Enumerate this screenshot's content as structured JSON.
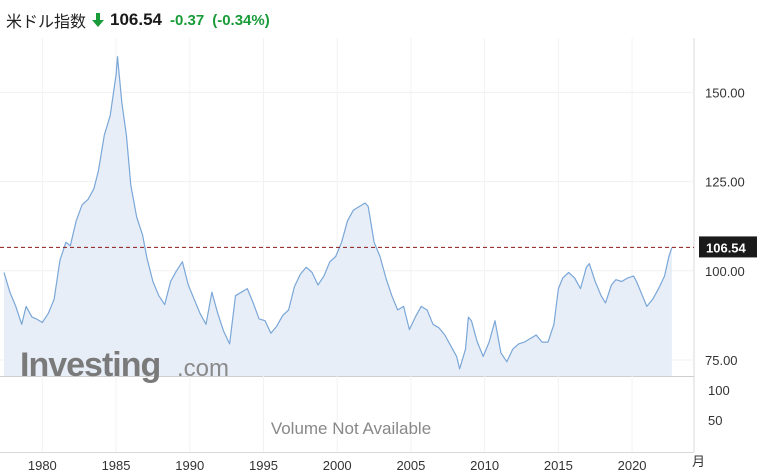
{
  "header": {
    "title": "米ドル指数",
    "price": "106.54",
    "change": "-0.37",
    "change_pct": "(-0.34%)",
    "direction_icon": "down-arrow-icon",
    "up_color": "#1a9b3a",
    "accent_color": "#1a9b3a"
  },
  "logo": {
    "brand": "Investing",
    "suffix": ".com"
  },
  "volume_note": "Volume Not Available",
  "colors": {
    "line": "#7aa7d8",
    "fill": "#e8eef7",
    "last_line": "#8b1a1a",
    "label_bg": "#1a1a1a"
  },
  "chart_data": {
    "type": "area",
    "last_value": 106.54,
    "last_value_label": "106.54",
    "x_unit_label": "月",
    "xlim": [
      1977.4,
      2024.2
    ],
    "ylim": [
      70.5,
      163
    ],
    "yticks": [
      75,
      100,
      125,
      150
    ],
    "ytick_labels": [
      "75.00",
      "100.00",
      "125.00",
      "150.00"
    ],
    "xticks": [
      1980,
      1985,
      1990,
      1995,
      2000,
      2005,
      2010,
      2015,
      2020
    ],
    "xtick_labels": [
      "1980",
      "1985",
      "1990",
      "1995",
      "2000",
      "2005",
      "2010",
      "2015",
      "2020"
    ],
    "volume_yticks": [
      50,
      100
    ],
    "volume_ytick_labels": [
      "50",
      "100"
    ],
    "grid": true,
    "x": [
      1977.4,
      1977.8,
      1978.2,
      1978.6,
      1978.9,
      1979.3,
      1979.6,
      1980.0,
      1980.4,
      1980.8,
      1981.2,
      1981.6,
      1981.9,
      1982.3,
      1982.7,
      1983.1,
      1983.5,
      1983.8,
      1984.2,
      1984.6,
      1985.0,
      1985.1,
      1985.4,
      1985.7,
      1986.0,
      1986.4,
      1986.8,
      1987.1,
      1987.5,
      1987.9,
      1988.3,
      1988.7,
      1989.1,
      1989.5,
      1989.9,
      1990.3,
      1990.7,
      1991.1,
      1991.5,
      1991.9,
      1992.3,
      1992.7,
      1993.1,
      1993.5,
      1993.9,
      1994.3,
      1994.7,
      1995.1,
      1995.5,
      1995.9,
      1996.3,
      1996.7,
      1997.1,
      1997.5,
      1997.9,
      1998.3,
      1998.7,
      1999.1,
      1999.5,
      1999.9,
      2000.3,
      2000.7,
      2001.1,
      2001.5,
      2001.9,
      2002.1,
      2002.5,
      2002.9,
      2003.3,
      2003.7,
      2004.1,
      2004.5,
      2004.9,
      2005.3,
      2005.7,
      2006.1,
      2006.5,
      2006.9,
      2007.3,
      2007.7,
      2008.1,
      2008.3,
      2008.7,
      2008.9,
      2009.1,
      2009.5,
      2009.9,
      2010.3,
      2010.7,
      2011.1,
      2011.5,
      2011.9,
      2012.3,
      2012.7,
      2013.1,
      2013.5,
      2013.9,
      2014.3,
      2014.7,
      2015.0,
      2015.3,
      2015.7,
      2016.1,
      2016.5,
      2016.9,
      2017.1,
      2017.5,
      2017.9,
      2018.2,
      2018.6,
      2018.9,
      2019.3,
      2019.7,
      2020.1,
      2020.3,
      2020.7,
      2021.0,
      2021.4,
      2021.8,
      2022.2,
      2022.5,
      2022.7
    ],
    "y": [
      99.5,
      94.0,
      90.0,
      85.0,
      90.0,
      87.0,
      86.5,
      85.5,
      88.0,
      92.0,
      103.0,
      108.0,
      107.0,
      114.0,
      118.5,
      120.0,
      123.0,
      128.0,
      138.0,
      143.5,
      155.0,
      160.0,
      147.0,
      138.0,
      124.0,
      115.0,
      110.0,
      103.5,
      97.0,
      93.0,
      90.5,
      97.0,
      100.0,
      102.5,
      96.0,
      92.0,
      88.0,
      85.0,
      94.0,
      88.0,
      83.0,
      79.5,
      93.0,
      94.0,
      95.0,
      91.0,
      86.5,
      86.0,
      82.5,
      84.5,
      87.5,
      89.0,
      95.5,
      99.0,
      101.0,
      99.5,
      96.0,
      98.5,
      102.5,
      104.0,
      108.0,
      114.0,
      117.0,
      118.0,
      119.0,
      118.0,
      108.0,
      104.0,
      98.0,
      93.0,
      89.0,
      90.0,
      83.5,
      87.0,
      90.0,
      89.0,
      85.0,
      84.0,
      82.0,
      79.0,
      76.0,
      72.5,
      78.0,
      87.0,
      86.0,
      80.0,
      76.0,
      80.0,
      86.0,
      77.0,
      74.5,
      78.0,
      79.5,
      80.0,
      81.0,
      82.0,
      80.0,
      80.0,
      85.0,
      95.0,
      98.0,
      99.5,
      98.0,
      95.0,
      101.0,
      102.0,
      97.0,
      93.0,
      91.0,
      96.0,
      97.5,
      97.0,
      98.0,
      98.5,
      97.0,
      93.0,
      90.0,
      92.0,
      95.0,
      98.5,
      104.0,
      106.54
    ]
  }
}
